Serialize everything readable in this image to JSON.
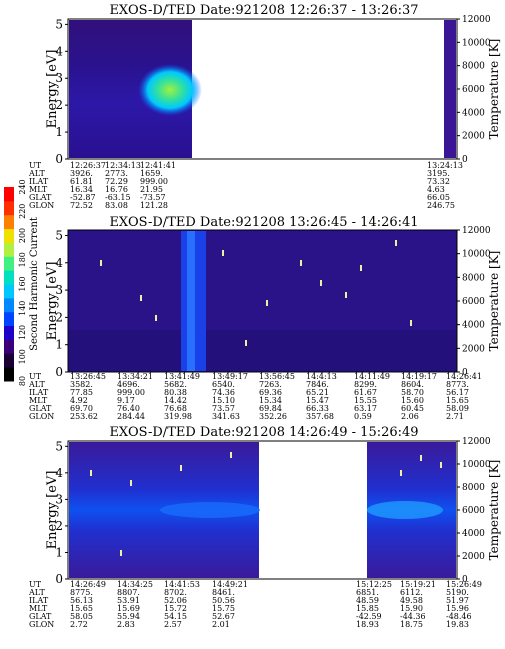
{
  "colorbar": {
    "label": "Second Harmonic Current",
    "ticks": [
      "80",
      "100",
      "120",
      "140",
      "160",
      "180",
      "200",
      "220",
      "240"
    ],
    "colors": [
      "#000000",
      "#1a0033",
      "#3a007a",
      "#1f00c8",
      "#0044ff",
      "#0088ff",
      "#00c8ff",
      "#00e0c0",
      "#40f080",
      "#b0f040",
      "#f0e000",
      "#ff8000",
      "#ff3000",
      "#ff0000"
    ]
  },
  "panels": [
    {
      "title": "EXOS-D/TED   Date:921208   12:26:37 - 13:26:37",
      "ylabel": "Energy [eV]",
      "y2label": "Temperature [K]",
      "yticks": [
        "0",
        "1",
        "2",
        "3",
        "4",
        "5"
      ],
      "y2ticks": [
        "0",
        "2000",
        "4000",
        "6000",
        "8000",
        "10000",
        "12000"
      ],
      "ephem_labels": [
        "UT",
        "ALT",
        "ILAT",
        "MLT",
        "GLAT",
        "GLON"
      ],
      "ephem_cols": [
        {
          "vals": [
            "12:26:37",
            "3926.",
            "61.81",
            "16.34",
            "-52.87",
            "72.52"
          ]
        },
        {
          "vals": [
            "12:34:13",
            "2773.",
            "72.29",
            "16.76",
            "-63.15",
            "83.08"
          ]
        },
        {
          "vals": [
            "12:41:41",
            "1659.",
            "999.00",
            "21.95",
            "-73.57",
            "121.28"
          ]
        },
        {
          "vals": [
            "13:24:13",
            "3195.",
            "73.32",
            "4.63",
            "66.05",
            "246.75"
          ]
        }
      ]
    },
    {
      "title": "EXOS-D/TED   Date:921208   13:26:45 - 14:26:41",
      "ylabel": "Energy [eV]",
      "y2label": "Temperature [K]",
      "yticks": [
        "0",
        "1",
        "2",
        "3",
        "4",
        "5"
      ],
      "y2ticks": [
        "0",
        "2000",
        "4000",
        "6000",
        "8000",
        "10000",
        "12000"
      ],
      "ephem_labels": [
        "UT",
        "ALT",
        "ILAT",
        "MLT",
        "GLAT",
        "GLON"
      ],
      "ephem_cols": [
        {
          "vals": [
            "13:26:45",
            "3582.",
            "77.85",
            "4.92",
            "69.70",
            "253.62"
          ]
        },
        {
          "vals": [
            "13:34:21",
            "4696.",
            "999.00",
            "9.17",
            "76.40",
            "284.44"
          ]
        },
        {
          "vals": [
            "13:41:49",
            "5682.",
            "80.38",
            "14.42",
            "76.68",
            "319.98"
          ]
        },
        {
          "vals": [
            "13:49:17",
            "6540.",
            "74.36",
            "15.10",
            "73.57",
            "341.63"
          ]
        },
        {
          "vals": [
            "13:56:45",
            "7263.",
            "69.36",
            "15.34",
            "69.84",
            "352.26"
          ]
        },
        {
          "vals": [
            "14:4:13",
            "7846.",
            "65.21",
            "15.47",
            "66.33",
            "357.68"
          ]
        },
        {
          "vals": [
            "14:11:49",
            "8299.",
            "61.67",
            "15.55",
            "63.17",
            "0.59"
          ]
        },
        {
          "vals": [
            "14:19:17",
            "8604.",
            "58.70",
            "15.60",
            "60.45",
            "2.06"
          ]
        },
        {
          "vals": [
            "14:26:41",
            "8773.",
            "56.17",
            "15.65",
            "58.09",
            "2.71"
          ]
        }
      ]
    },
    {
      "title": "EXOS-D/TED   Date:921208   14:26:49 - 15:26:49",
      "ylabel": "Energy [eV]",
      "y2label": "Temperature [K]",
      "yticks": [
        "0",
        "1",
        "2",
        "3",
        "4",
        "5"
      ],
      "y2ticks": [
        "0",
        "2000",
        "4000",
        "6000",
        "8000",
        "10000",
        "12000"
      ],
      "ephem_labels": [
        "UT",
        "ALT",
        "ILAT",
        "MLT",
        "GLAT",
        "GLON"
      ],
      "ephem_cols": [
        {
          "vals": [
            "14:26:49",
            "8775.",
            "56.13",
            "15.65",
            "58.05",
            "2.72"
          ]
        },
        {
          "vals": [
            "14:34:25",
            "8807.",
            "53.91",
            "15.69",
            "55.94",
            "2.83"
          ]
        },
        {
          "vals": [
            "14:41:53",
            "8702.",
            "52.06",
            "15.72",
            "54.15",
            "2.57"
          ]
        },
        {
          "vals": [
            "14:49:21",
            "8461.",
            "50.56",
            "15.75",
            "52.67",
            "2.01"
          ]
        },
        {
          "vals": [
            "15:12:25",
            "6851.",
            "48.59",
            "15.85",
            "-42.59",
            "18.93"
          ]
        },
        {
          "vals": [
            "15:19:21",
            "6112.",
            "49.58",
            "15.90",
            "-44.36",
            "18.75"
          ]
        },
        {
          "vals": [
            "15:26:49",
            "5190.",
            "51.97",
            "15.96",
            "-48.46",
            "19.83"
          ]
        }
      ]
    }
  ],
  "chart_data": [
    {
      "type": "heatmap",
      "title": "EXOS-D/TED   Date:921208   12:26:37 - 13:26:37",
      "xlabel": "",
      "ylabel": "Energy [eV]",
      "y2label": "Temperature [K]",
      "ylim": [
        0,
        5.2
      ],
      "y2lim": [
        0,
        12000
      ],
      "x_ticks": [
        "12:26:37",
        "12:34:13",
        "12:41:41",
        "13:24:13"
      ],
      "data_spans": [
        [
          0,
          0.3
        ],
        [
          0.955,
          1.0
        ]
      ],
      "features": "strong thermal emission 2-3 eV near 12:38-12:41 UT"
    },
    {
      "type": "heatmap",
      "title": "EXOS-D/TED   Date:921208   13:26:45 - 14:26:41",
      "xlabel": "",
      "ylabel": "Energy [eV]",
      "y2label": "Temperature [K]",
      "ylim": [
        0,
        5.2
      ],
      "y2lim": [
        0,
        12000
      ],
      "x_ticks": [
        "13:26:45",
        "13:34:21",
        "13:41:49",
        "13:49:17",
        "13:56:45",
        "14:4:13",
        "14:11:49",
        "14:19:17",
        "14:26:41"
      ],
      "data_spans": [
        [
          0,
          1.0
        ]
      ],
      "features": "broadband burst near 13:44 UT"
    },
    {
      "type": "heatmap",
      "title": "EXOS-D/TED   Date:921208   14:26:49 - 15:26:49",
      "xlabel": "",
      "ylabel": "Energy [eV]",
      "y2label": "Temperature [K]",
      "ylim": [
        0,
        5.2
      ],
      "y2lim": [
        0,
        12000
      ],
      "x_ticks": [
        "14:26:49",
        "14:34:25",
        "14:41:53",
        "14:49:21",
        "15:12:25",
        "15:19:21",
        "15:26:49"
      ],
      "data_spans": [
        [
          0,
          0.52
        ],
        [
          0.74,
          1.0
        ]
      ],
      "features": "enhanced band near 2.5 eV"
    }
  ]
}
